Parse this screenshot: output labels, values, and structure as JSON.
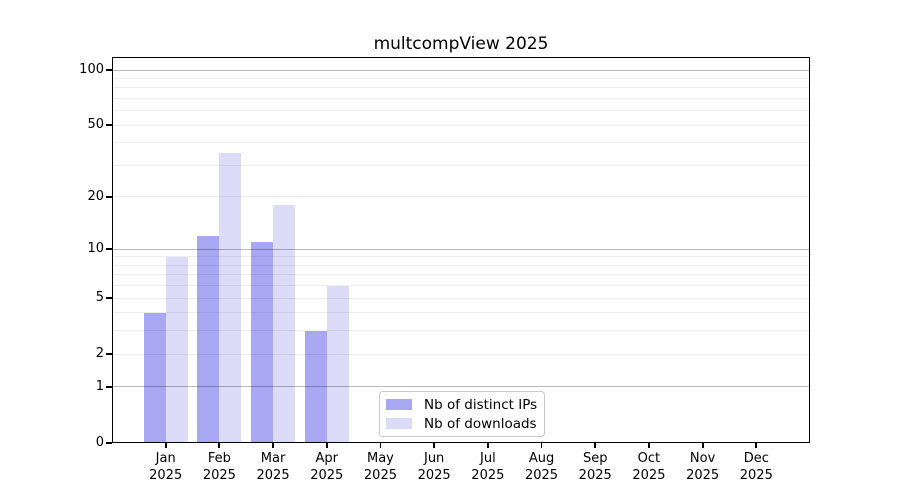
{
  "title": "multcompView 2025",
  "colors": {
    "series_ips": "#a8a8f2",
    "series_downloads": "#dcdcf8",
    "grid_minor": "rgba(0,0,0,0.07)",
    "grid_major": "rgba(0,0,0,0.27)",
    "spine": "#000000",
    "background": "#ffffff",
    "text": "#000000",
    "legend_border": "#c9c9c9"
  },
  "chart_data": {
    "type": "bar",
    "title": "multcompView 2025",
    "xlabel": "",
    "ylabel": "",
    "year_label": "2025",
    "categories": [
      "Jan",
      "Feb",
      "Mar",
      "Apr",
      "May",
      "Jun",
      "Jul",
      "Aug",
      "Sep",
      "Oct",
      "Nov",
      "Dec"
    ],
    "series": [
      {
        "name": "Nb of distinct IPs",
        "color": "#a8a8f2",
        "values": [
          4,
          12,
          11,
          3,
          0,
          0,
          0,
          0,
          0,
          0,
          0,
          0
        ]
      },
      {
        "name": "Nb of downloads",
        "color": "#dcdcf8",
        "values": [
          9,
          35,
          18,
          6,
          0,
          0,
          0,
          0,
          0,
          0,
          0,
          0
        ]
      }
    ],
    "yscale": "log1p",
    "ylim": [
      0,
      118
    ],
    "yticks": [
      0,
      1,
      2,
      5,
      10,
      20,
      50,
      100
    ],
    "minor_gridlines": [
      2,
      3,
      4,
      5,
      6,
      7,
      8,
      9,
      20,
      30,
      40,
      50,
      60,
      70,
      80,
      90
    ],
    "major_gridlines": [
      1,
      10,
      100
    ],
    "grid": true,
    "legend_position": "inside-bottom-center",
    "legend_entries": [
      "Nb of distinct IPs",
      "Nb of downloads"
    ]
  }
}
